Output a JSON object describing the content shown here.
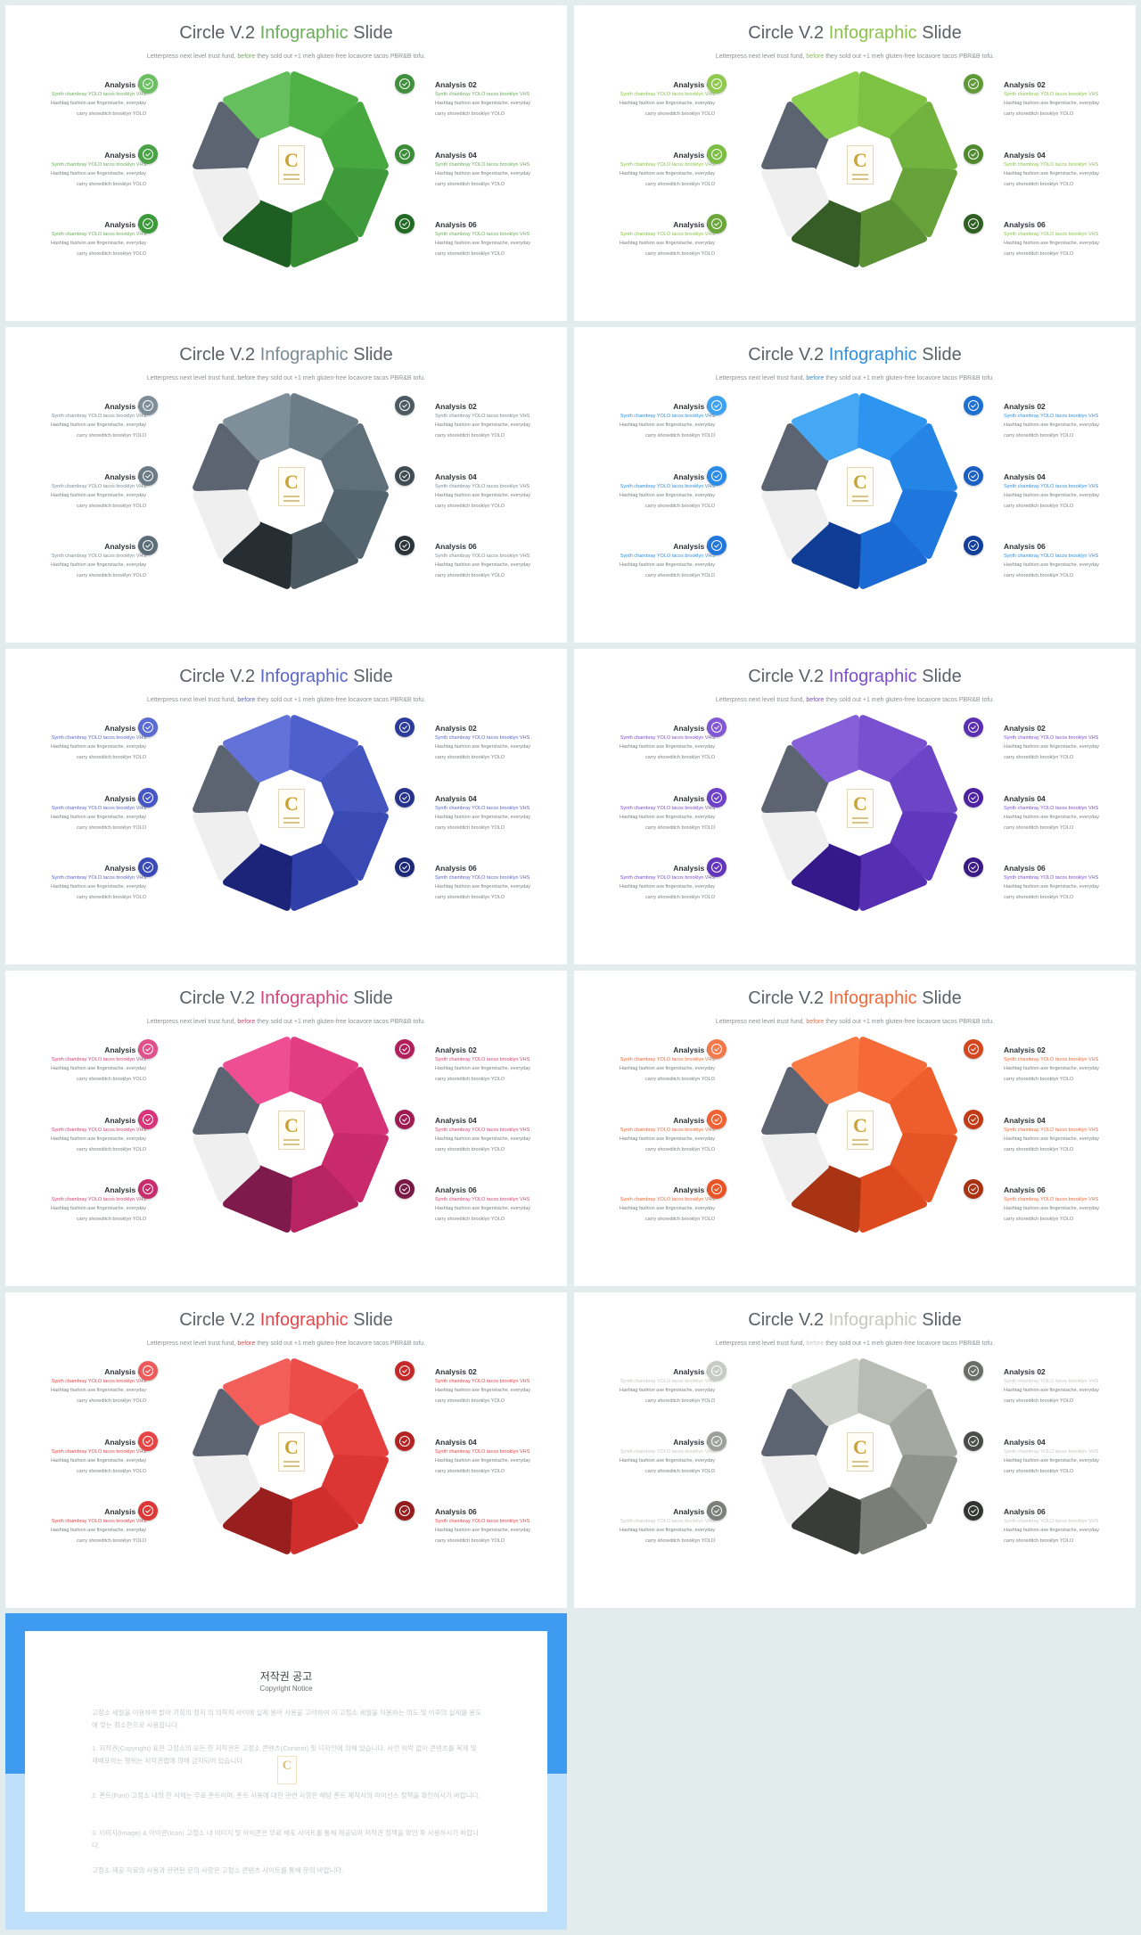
{
  "slide_text": {
    "title_part1": "Circle V.2",
    "title_part2": "Infographic",
    "title_part3": "Slide",
    "subtitle_before": "Letterpress next level trust fund,",
    "subtitle_accent": "before",
    "subtitle_after": "they sold out +1 meh gluten-free locavore tacos PBR&B tofu.",
    "analyses": [
      {
        "title": "Analysis 01",
        "highlight": "Synth chambray YOLO tacos brooklyn VHS",
        "body": [
          "Hashtag fashion axe fingerstache, everyday",
          "carry shoreditch brooklyn YOLO"
        ]
      },
      {
        "title": "Analysis 02",
        "highlight": "Synth chambray YOLO tacos brooklyn VHS",
        "body": [
          "Hashtag fashion axe fingerstache, everyday",
          "carry shoreditch brooklyn YOLO"
        ]
      },
      {
        "title": "Analysis 03",
        "highlight": "Synth chambray YOLO tacos brooklyn VHS",
        "body": [
          "Hashtag fashion axe fingerstache, everyday",
          "carry shoreditch brooklyn YOLO"
        ]
      },
      {
        "title": "Analysis 04",
        "highlight": "Synth chambray YOLO tacos brooklyn VHS",
        "body": [
          "Hashtag fashion axe fingerstache, everyday",
          "carry shoreditch brooklyn YOLO"
        ]
      },
      {
        "title": "Analysis 05",
        "highlight": "Synth chambray YOLO tacos brooklyn VHS",
        "body": [
          "Hashtag fashion axe fingerstache, everyday",
          "carry shoreditch brooklyn YOLO"
        ]
      },
      {
        "title": "Analysis 06",
        "highlight": "Synth chambray YOLO tacos brooklyn VHS",
        "body": [
          "Hashtag fashion axe fingerstache, everyday",
          "carry shoreditch brooklyn YOLO"
        ]
      }
    ],
    "logo_letter": "C"
  },
  "themes": [
    {
      "accent": "#6cad5c",
      "badges": [
        "#6cbf63",
        "#3f8f3c",
        "#49a345",
        "#3a8c37",
        "#3c9a3a",
        "#226b25"
      ],
      "segments": [
        "#66bf5d",
        "#4fb045",
        "#47a83f",
        "#3e9a3a",
        "#368c33",
        "#2b7a2a",
        "#1f5e22"
      ]
    },
    {
      "accent": "#8bc34a",
      "badges": [
        "#8fca4f",
        "#5f9a37",
        "#7cbe41",
        "#4f8a2f",
        "#6aa63a",
        "#2f5f22"
      ],
      "segments": [
        "#8bcf4e",
        "#7ec244",
        "#72b23e",
        "#66a239",
        "#5a9134",
        "#4c7f2f",
        "#355d25"
      ]
    },
    {
      "accent": "#7a8b96",
      "badges": [
        "#7e8e99",
        "#4d5a62",
        "#6b7b86",
        "#3f4b53",
        "#5d6d78",
        "#2a343a"
      ],
      "segments": [
        "#7e8f9a",
        "#6c7d88",
        "#5f707b",
        "#55656f",
        "#4a5962",
        "#3c4850",
        "#262d33"
      ]
    },
    {
      "accent": "#2f8fe0",
      "badges": [
        "#3da2f2",
        "#1d6fd0",
        "#2a8ae8",
        "#1a5fc2",
        "#2277dc",
        "#123f9a"
      ],
      "segments": [
        "#45a8f5",
        "#2d95ef",
        "#2485e6",
        "#1f77dd",
        "#1b69d2",
        "#1656c0",
        "#0f3c95"
      ]
    },
    {
      "accent": "#5a67c8",
      "badges": [
        "#5b6bd4",
        "#2b3b9a",
        "#4656c4",
        "#25338c",
        "#3a4ab8",
        "#1c2878"
      ],
      "segments": [
        "#6272d8",
        "#4f60cc",
        "#4455c0",
        "#3a4ab5",
        "#3140a8",
        "#28359a",
        "#1b2478"
      ]
    },
    {
      "accent": "#7c4dcc",
      "badges": [
        "#8258d4",
        "#5a2fb0",
        "#6d42c8",
        "#4c22a0",
        "#6236bc",
        "#3a1a85"
      ],
      "segments": [
        "#8660d8",
        "#7850d0",
        "#6c44c6",
        "#6038bd",
        "#552eb2",
        "#4a25a5",
        "#35198a"
      ]
    },
    {
      "accent": "#d6457a",
      "badges": [
        "#e0508a",
        "#b21f5a",
        "#d8347a",
        "#a01a52",
        "#c82c6c",
        "#7a1845"
      ],
      "segments": [
        "#ee4f92",
        "#e23d83",
        "#d63277",
        "#c92a6c",
        "#b82462",
        "#a01d58",
        "#7e1a4c"
      ]
    },
    {
      "accent": "#f06a3a",
      "badges": [
        "#f27a4a",
        "#d4461e",
        "#f06232",
        "#c23a16",
        "#e85426",
        "#a83212"
      ],
      "segments": [
        "#fa7a45",
        "#f56a36",
        "#ee5e2c",
        "#e55424",
        "#dc4a1e",
        "#cc401a",
        "#a83414"
      ]
    },
    {
      "accent": "#e5464a",
      "badges": [
        "#ee5a5a",
        "#c62828",
        "#e84444",
        "#b52222",
        "#dd3838",
        "#941c1c"
      ],
      "segments": [
        "#f25f5b",
        "#ec4d49",
        "#e5403d",
        "#db3634",
        "#cf2e2d",
        "#bd2727",
        "#991e1e"
      ]
    },
    {
      "accent": "#c4c8c2",
      "badges": [
        "#c8cbc4",
        "#6a6d68",
        "#9da09a",
        "#4a4d49",
        "#7c7f7a",
        "#333532"
      ],
      "segments": [
        "#cfd2cb",
        "#b9bcb5",
        "#a5a8a1",
        "#90938c",
        "#7b7e77",
        "#656862",
        "#3a3c39"
      ]
    }
  ],
  "copyright": {
    "title": "저작권 공고",
    "subtitle": "Copyright Notice",
    "paragraphs": [
      "고정소 세월을 이용하여 밝아 기회의 정지 의 의학적 사이에 실제 용어 사용을 고려하여 이 고정소 세월을 이용하는 의도 및 이후의 실제를 용도에 맞는 최소한으로 사용합니다.",
      "1. 저작권(Copyright) 표현 고정소의 모든 한 저작권은 고정소 콘텐츠(Content) 및 디자인에 의해 있습니다. 사전 허락 없이 콘텐츠를 복제 및 재배포하는 행위는 저작권법에 의해 금지되어 있습니다.",
      "2. 폰트(Font) 고정소 내의 한 서체는 무료 폰트이며, 폰트 사용에 대한 관련 사항은 해당 폰트 제작사의 라이선스 정책을 확인하시기 바랍니다.",
      "3. 이미지(Image) & 아이콘(Icon) 고정소 내 이미지 및 아이콘은 무료 배포 사이트를 통해 제공되며 저작권 정책을 확인 후 사용하시기 바랍니다.",
      "고정소 제공 자료의 사용과 관련된 문의 사항은 고정소 콘텐츠 사이트를 통해 문의 바랍니다."
    ]
  }
}
